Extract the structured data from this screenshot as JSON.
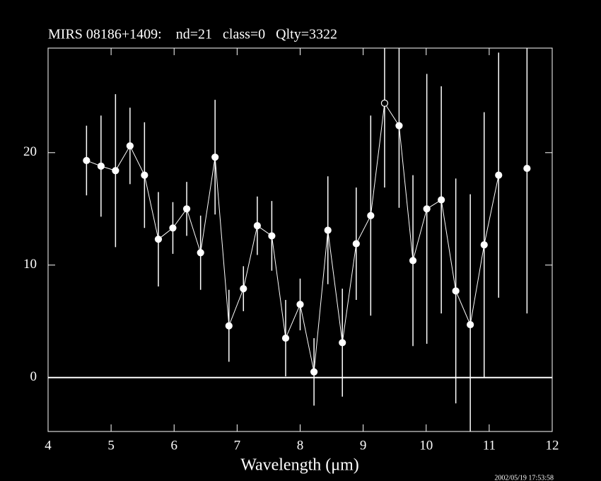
{
  "chart_data": {
    "type": "errorbar",
    "title": "MIRS 08186+1409:    nd=21   class=0   Qlty=3322",
    "x_label": "Wavelength (μm)",
    "timestamp": "2002/05/19 17:53:58",
    "x": [
      4.61,
      4.84,
      5.07,
      5.3,
      5.53,
      5.75,
      5.98,
      6.2,
      6.42,
      6.65,
      6.87,
      7.1,
      7.32,
      7.55,
      7.77,
      8.0,
      8.22,
      8.44,
      8.67,
      8.89,
      9.12,
      9.34,
      9.57,
      9.79,
      10.01,
      10.24,
      10.47,
      10.7,
      10.92,
      11.15,
      11.37,
      11.6
    ],
    "values": [
      19.3,
      18.8,
      18.4,
      20.6,
      18.0,
      12.3,
      13.3,
      15.0,
      11.1,
      19.6,
      4.6,
      7.9,
      13.5,
      12.6,
      3.5,
      6.5,
      0.5,
      13.1,
      3.1,
      11.9,
      14.4,
      24.4,
      22.4,
      10.4,
      15.0,
      15.8,
      7.7,
      4.7,
      11.8,
      18.0,
      null,
      18.6
    ],
    "errors": [
      3.1,
      4.5,
      6.8,
      3.4,
      4.7,
      4.2,
      2.3,
      2.4,
      3.3,
      5.1,
      3.2,
      2.0,
      2.6,
      3.1,
      3.4,
      2.3,
      3.0,
      4.8,
      4.8,
      5.0,
      8.9,
      7.5,
      7.3,
      7.6,
      12.0,
      10.1,
      10.0,
      11.6,
      11.8,
      10.9,
      null,
      12.9
    ],
    "markers": [
      "filled",
      "filled",
      "filled",
      "filled",
      "filled",
      "filled",
      "filled",
      "filled",
      "filled",
      "filled",
      "filled",
      "filled",
      "filled",
      "filled",
      "filled",
      "filled",
      "filled",
      "filled",
      "filled",
      "filled",
      "filled",
      "open",
      "filled",
      "filled",
      "filled",
      "filled",
      "filled",
      "filled",
      "filled",
      "filled",
      "filled",
      "filled"
    ],
    "color": "#ffffff",
    "xlim": [
      4,
      12
    ],
    "xticks": [
      4,
      5,
      6,
      7,
      8,
      9,
      10,
      11,
      12
    ],
    "ylim": [
      -4.8,
      29.3
    ],
    "yticks": [
      0,
      10,
      20
    ],
    "zero_line": true
  }
}
